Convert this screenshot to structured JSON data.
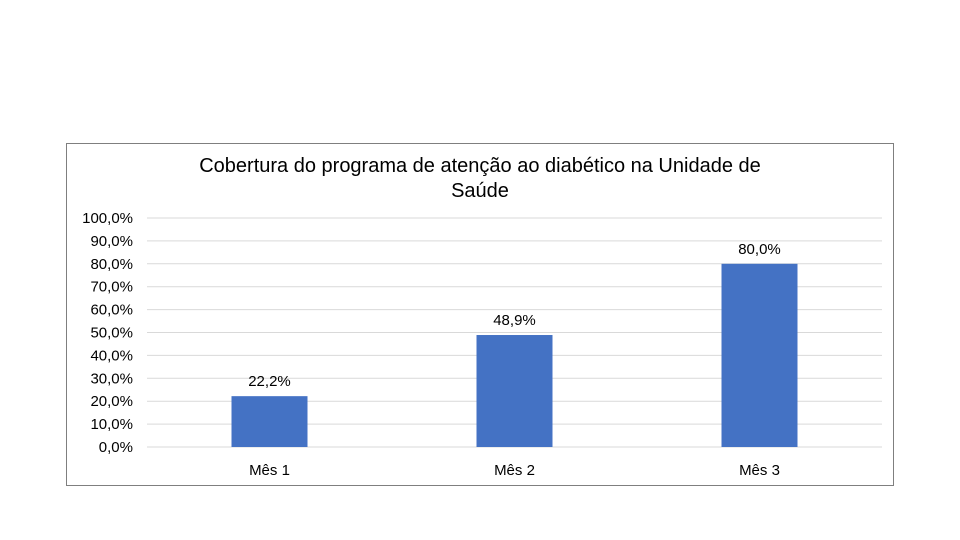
{
  "chart_data": {
    "type": "bar",
    "title_lines": [
      "Cobertura do programa de atenção ao diabético na Unidade de",
      "Saúde"
    ],
    "categories": [
      "Mês 1",
      "Mês 2",
      "Mês 3"
    ],
    "values": [
      22.2,
      48.9,
      80.0
    ],
    "data_labels": [
      "22,2%",
      "48,9%",
      "80,0%"
    ],
    "ylim": [
      0,
      100
    ],
    "yticks": [
      0,
      10,
      20,
      30,
      40,
      50,
      60,
      70,
      80,
      90,
      100
    ],
    "ytick_labels": [
      "0,0%",
      "10,0%",
      "20,0%",
      "30,0%",
      "40,0%",
      "50,0%",
      "60,0%",
      "70,0%",
      "80,0%",
      "90,0%",
      "100,0%"
    ],
    "grid": true,
    "bar_color": "#4472C4",
    "grid_color": "#d9d9d9"
  }
}
